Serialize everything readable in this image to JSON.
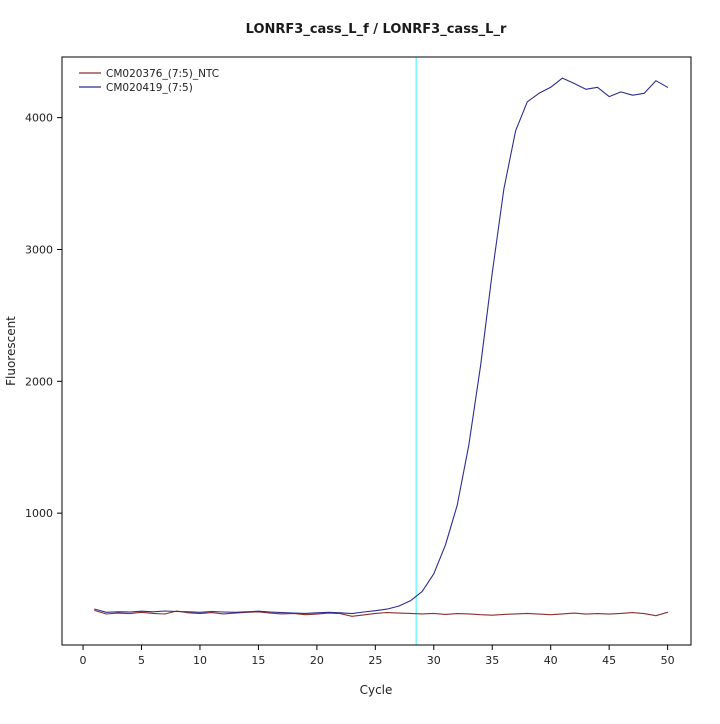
{
  "chart_data": {
    "type": "line",
    "title": "LONRF3_cass_L_f / LONRF3_cass_L_r",
    "xlabel": "Cycle",
    "ylabel": "Fluorescent",
    "xlim": [
      -1.8,
      52
    ],
    "ylim": [
      0,
      4460
    ],
    "xticks": [
      0,
      5,
      10,
      15,
      20,
      25,
      30,
      35,
      40,
      45,
      50
    ],
    "yticks": [
      1000,
      2000,
      3000,
      4000
    ],
    "grid": false,
    "legend_position": "top-left",
    "threshold_line": {
      "x": 28.5,
      "color": "#7df9ff"
    },
    "axis_color": "#000000",
    "x": [
      1,
      2,
      3,
      4,
      5,
      6,
      7,
      8,
      9,
      10,
      11,
      12,
      13,
      14,
      15,
      16,
      17,
      18,
      19,
      20,
      21,
      22,
      23,
      24,
      25,
      26,
      27,
      28,
      29,
      30,
      31,
      32,
      33,
      34,
      35,
      36,
      37,
      38,
      39,
      40,
      41,
      42,
      43,
      44,
      45,
      46,
      47,
      48,
      49,
      50
    ],
    "series": [
      {
        "name": "CM020376_(7:5)_NTC",
        "color": "#8b3030",
        "values": [
          262,
          235,
          242,
          238,
          248,
          240,
          235,
          258,
          244,
          238,
          246,
          236,
          242,
          248,
          252,
          242,
          236,
          240,
          230,
          234,
          242,
          238,
          218,
          228,
          240,
          246,
          242,
          240,
          236,
          240,
          232,
          238,
          236,
          230,
          226,
          232,
          236,
          240,
          234,
          230,
          236,
          242,
          234,
          238,
          234,
          240,
          246,
          238,
          222,
          248
        ]
      },
      {
        "name": "CM020419_(7:5)",
        "color": "#2d2d8f",
        "values": [
          272,
          248,
          252,
          250,
          256,
          252,
          258,
          254,
          252,
          248,
          254,
          250,
          248,
          252,
          256,
          250,
          246,
          242,
          240,
          244,
          248,
          244,
          238,
          250,
          260,
          272,
          295,
          335,
          405,
          540,
          760,
          1060,
          1520,
          2120,
          2820,
          3460,
          3900,
          4120,
          4185,
          4230,
          4300,
          4260,
          4215,
          4230,
          4160,
          4195,
          4170,
          4185,
          4280,
          4230
        ]
      }
    ]
  }
}
